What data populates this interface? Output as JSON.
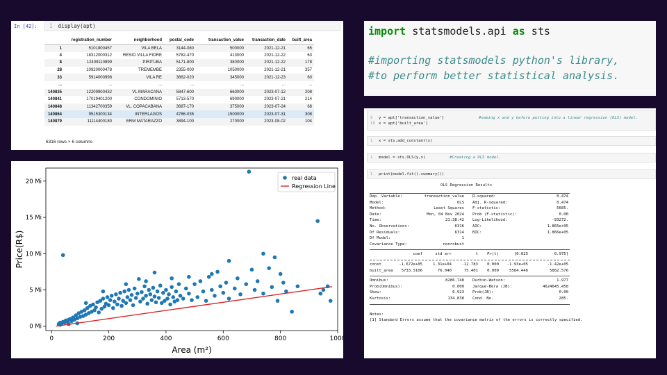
{
  "notebook": {
    "prompt": "In [42]:",
    "line_number": "1",
    "code": "display(apt)",
    "columns": [
      "registration_number",
      "neighborhood",
      "postal_code",
      "transaction_value",
      "transaction_date",
      "built_area"
    ],
    "rows": [
      {
        "index": "1",
        "cells": [
          "5101800457",
          "VILA BELA",
          "3144-080",
          "500000",
          "2021-12-21",
          "65"
        ]
      },
      {
        "index": "4",
        "cells": [
          "18312000312",
          "RESID VILLA FIORE",
          "5782-470",
          "413000",
          "2021-12-22",
          "63"
        ]
      },
      {
        "index": "8",
        "cells": [
          "12409110899",
          "PIRITUBA",
          "5171-800",
          "380000",
          "2021-12-22",
          "178"
        ]
      },
      {
        "index": "28",
        "cells": [
          "10920000478",
          "TREMEMBE",
          "2355-000",
          "1050000",
          "2021-12-21",
          "357"
        ]
      },
      {
        "index": "33",
        "cells": [
          "5914000998",
          "VILA RE",
          "3662-020",
          "345000",
          "2021-12-23",
          "60"
        ]
      },
      {
        "index": "...",
        "cells": [
          "...",
          "...",
          "...",
          "...",
          "...",
          "..."
        ]
      },
      {
        "index": "140835",
        "cells": [
          "12209900432",
          "VL MARACANA",
          "5847-600",
          "660000",
          "2023-07-12",
          "208"
        ]
      },
      {
        "index": "140841",
        "cells": [
          "17019401200",
          "CONDOMINIO",
          "5713-570",
          "690000",
          "2023-07-21",
          "214"
        ]
      },
      {
        "index": "140848",
        "cells": [
          "11342700359",
          "VL. COPACABANA",
          "3687-170",
          "375000",
          "2023-07-24",
          "68"
        ]
      },
      {
        "index": "140864",
        "cells": [
          "9515300134",
          "INTERLAGOS",
          "4786-035",
          "1500000",
          "2023-07-31",
          "308"
        ]
      },
      {
        "index": "140879",
        "cells": [
          "11114400180",
          "ERM MATARAZZO",
          "3894-100",
          "270000",
          "2023-08-02",
          "104"
        ]
      }
    ],
    "shape": "6316 rows × 6 columns"
  },
  "import_cell": {
    "kw_import": "import",
    "module": " statsmodels.api ",
    "kw_as": "as",
    "alias": " sts",
    "comment_1": "#importing statsmodels python's library,",
    "comment_2": "#to perform better statistical analysis."
  },
  "chart_data": {
    "type": "scatter",
    "xlabel": "Area (m²)",
    "ylabel": "Price(R$)",
    "xlim": [
      -20,
      1000
    ],
    "ylim": [
      -0.6,
      21.8
    ],
    "x_ticks": [
      0,
      200,
      400,
      600,
      800,
      1000
    ],
    "y_ticks": [
      0,
      5,
      10,
      15,
      20
    ],
    "y_tick_labels": [
      "0 Mi",
      "5 Mi",
      "10 Mi",
      "15 Mi",
      "20 Mi"
    ],
    "legend_position": "top-right",
    "series": [
      {
        "name": "real data",
        "kind": "scatter",
        "color": "#1f77b4",
        "points": [
          [
            25,
            0.3
          ],
          [
            30,
            0.5
          ],
          [
            35,
            0.4
          ],
          [
            40,
            0.6
          ],
          [
            45,
            0.5
          ],
          [
            50,
            0.8
          ],
          [
            55,
            0.6
          ],
          [
            60,
            0.9
          ],
          [
            65,
            1.0
          ],
          [
            70,
            0.7
          ],
          [
            75,
            1.2
          ],
          [
            80,
            0.9
          ],
          [
            85,
            1.5
          ],
          [
            90,
            1.1
          ],
          [
            95,
            1.8
          ],
          [
            100,
            1.3
          ],
          [
            105,
            2.0
          ],
          [
            110,
            1.4
          ],
          [
            115,
            2.2
          ],
          [
            120,
            1.6
          ],
          [
            125,
            2.5
          ],
          [
            130,
            1.8
          ],
          [
            135,
            2.8
          ],
          [
            140,
            2.0
          ],
          [
            145,
            3.0
          ],
          [
            150,
            2.2
          ],
          [
            155,
            2.6
          ],
          [
            160,
            3.3
          ],
          [
            165,
            1.9
          ],
          [
            170,
            3.5
          ],
          [
            175,
            2.4
          ],
          [
            180,
            3.8
          ],
          [
            185,
            2.7
          ],
          [
            190,
            3.1
          ],
          [
            195,
            4.0
          ],
          [
            200,
            2.9
          ],
          [
            205,
            3.6
          ],
          [
            210,
            4.2
          ],
          [
            215,
            2.5
          ],
          [
            220,
            3.4
          ],
          [
            225,
            4.4
          ],
          [
            230,
            3.0
          ],
          [
            235,
            3.8
          ],
          [
            240,
            4.6
          ],
          [
            245,
            2.8
          ],
          [
            250,
            3.5
          ],
          [
            255,
            4.8
          ],
          [
            260,
            3.2
          ],
          [
            265,
            4.0
          ],
          [
            270,
            5.0
          ],
          [
            275,
            3.6
          ],
          [
            280,
            4.3
          ],
          [
            285,
            2.9
          ],
          [
            290,
            5.2
          ],
          [
            295,
            3.9
          ],
          [
            300,
            4.5
          ],
          [
            305,
            6.5
          ],
          [
            310,
            3.4
          ],
          [
            315,
            4.7
          ],
          [
            320,
            3.8
          ],
          [
            325,
            5.5
          ],
          [
            330,
            4.2
          ],
          [
            335,
            3.1
          ],
          [
            340,
            5.0
          ],
          [
            345,
            4.4
          ],
          [
            350,
            3.6
          ],
          [
            355,
            5.3
          ],
          [
            360,
            4.1
          ],
          [
            365,
            3.3
          ],
          [
            370,
            4.8
          ],
          [
            375,
            3.9
          ],
          [
            380,
            5.6
          ],
          [
            385,
            3.2
          ],
          [
            390,
            4.6
          ],
          [
            395,
            3.5
          ],
          [
            400,
            5.0
          ],
          [
            405,
            3.8
          ],
          [
            410,
            4.4
          ],
          [
            415,
            3.0
          ],
          [
            420,
            5.4
          ],
          [
            425,
            4.0
          ],
          [
            430,
            3.4
          ],
          [
            435,
            4.8
          ],
          [
            440,
            3.6
          ],
          [
            445,
            5.8
          ],
          [
            450,
            4.2
          ],
          [
            460,
            3.8
          ],
          [
            470,
            5.2
          ],
          [
            480,
            4.5
          ],
          [
            490,
            3.6
          ],
          [
            500,
            5.8
          ],
          [
            510,
            4.0
          ],
          [
            520,
            6.2
          ],
          [
            530,
            4.8
          ],
          [
            540,
            3.5
          ],
          [
            550,
            6.8
          ],
          [
            560,
            5.0
          ],
          [
            570,
            4.2
          ],
          [
            580,
            7.5
          ],
          [
            590,
            5.5
          ],
          [
            600,
            4.6
          ],
          [
            610,
            6.0
          ],
          [
            620,
            3.8
          ],
          [
            640,
            5.2
          ],
          [
            650,
            6.6
          ],
          [
            660,
            4.4
          ],
          [
            680,
            5.8
          ],
          [
            690,
            21.3
          ],
          [
            700,
            7.8
          ],
          [
            710,
            5.0
          ],
          [
            720,
            6.2
          ],
          [
            740,
            4.5
          ],
          [
            760,
            8.0
          ],
          [
            770,
            5.4
          ],
          [
            780,
            9.5
          ],
          [
            790,
            3.5
          ],
          [
            800,
            7.2
          ],
          [
            810,
            6.0
          ],
          [
            820,
            4.8
          ],
          [
            840,
            2.0
          ],
          [
            860,
            5.5
          ],
          [
            930,
            14.5
          ],
          [
            940,
            4.5
          ],
          [
            950,
            5.0
          ],
          [
            965,
            5.5
          ],
          [
            975,
            3.5
          ],
          [
            40,
            9.8
          ],
          [
            120,
            3.2
          ],
          [
            180,
            4.8
          ],
          [
            260,
            5.8
          ],
          [
            330,
            6.2
          ],
          [
            360,
            7.4
          ],
          [
            420,
            6.6
          ],
          [
            480,
            6.8
          ],
          [
            560,
            7.2
          ],
          [
            620,
            9.0
          ],
          [
            740,
            10.0
          ],
          [
            30,
            0.2
          ],
          [
            60,
            0.3
          ],
          [
            90,
            0.4
          ]
        ]
      },
      {
        "name": "Regression Line",
        "kind": "line",
        "color": "#d62728",
        "points": [
          [
            15,
            0.0
          ],
          [
            980,
            5.45
          ]
        ]
      }
    ]
  },
  "ols_notebook": {
    "cell_xy": [
      {
        "ln": "9",
        "code": "y = apt['transaction_value']",
        "comment": "#naming x and y before putting into a linear regression (OLS) model."
      },
      {
        "ln": "10",
        "code": "x = apt['built_area']",
        "comment": ""
      }
    ],
    "cell_const": {
      "ln": "1",
      "code": "x = sts.add_constant(x)"
    },
    "cell_model": {
      "ln": "1",
      "code": "model = sts.OLS(y,x)",
      "comment": "#Creating a OLS model."
    },
    "cell_print": {
      "ln": "1",
      "code": "print(model.fit().summary())"
    },
    "summary_title": "OLS Regression Results",
    "summary_left": [
      [
        "Dep. Variable:",
        "transaction_value"
      ],
      [
        "Model:",
        "OLS"
      ],
      [
        "Method:",
        "Least Squares"
      ],
      [
        "Date:",
        "Mon, 04 Nov 2024"
      ],
      [
        "Time:",
        "21:38:42"
      ],
      [
        "No. Observations:",
        "6316"
      ],
      [
        "Df Residuals:",
        "6314"
      ],
      [
        "Df Model:",
        "1"
      ],
      [
        "Covariance Type:",
        "nonrobust"
      ]
    ],
    "summary_right": [
      [
        "R-squared:",
        "0.474"
      ],
      [
        "Adj. R-squared:",
        "0.474"
      ],
      [
        "F-statistic:",
        "5685."
      ],
      [
        "Prob (F-statistic):",
        "0.00"
      ],
      [
        "Log-Likelihood:",
        "-93272."
      ],
      [
        "AIC:",
        "1.865e+05"
      ],
      [
        "BIC:",
        "1.866e+05"
      ]
    ],
    "coef_header": [
      "coef",
      "std err",
      "t",
      "P>|t|",
      "[0.025",
      "0.975]"
    ],
    "coef_rows": [
      [
        "const",
        "-1.672e+05",
        "1.31e+04",
        "-12.783",
        "0.000",
        "-1.93e+05",
        "-1.42e+05"
      ],
      [
        "built_area",
        "5733.5106",
        "76.040",
        "75.401",
        "0.000",
        "5584.446",
        "5882.576"
      ]
    ],
    "diag_left": [
      [
        "Omnibus:",
        "8286.748"
      ],
      [
        "Prob(Omnibus):",
        "0.000"
      ],
      [
        "Skew:",
        "6.923"
      ],
      [
        "Kurtosis:",
        "134.838"
      ]
    ],
    "diag_right": [
      [
        "Durbin-Watson:",
        "1.977"
      ],
      [
        "Jarque-Bera (JB):",
        "4624645.458"
      ],
      [
        "Prob(JB):",
        "0.00"
      ],
      [
        "Cond. No.",
        "285."
      ]
    ],
    "notes_title": "Notes:",
    "note_1": "[1] Standard Errors assume that the covariance matrix of the errors is correctly specified."
  }
}
